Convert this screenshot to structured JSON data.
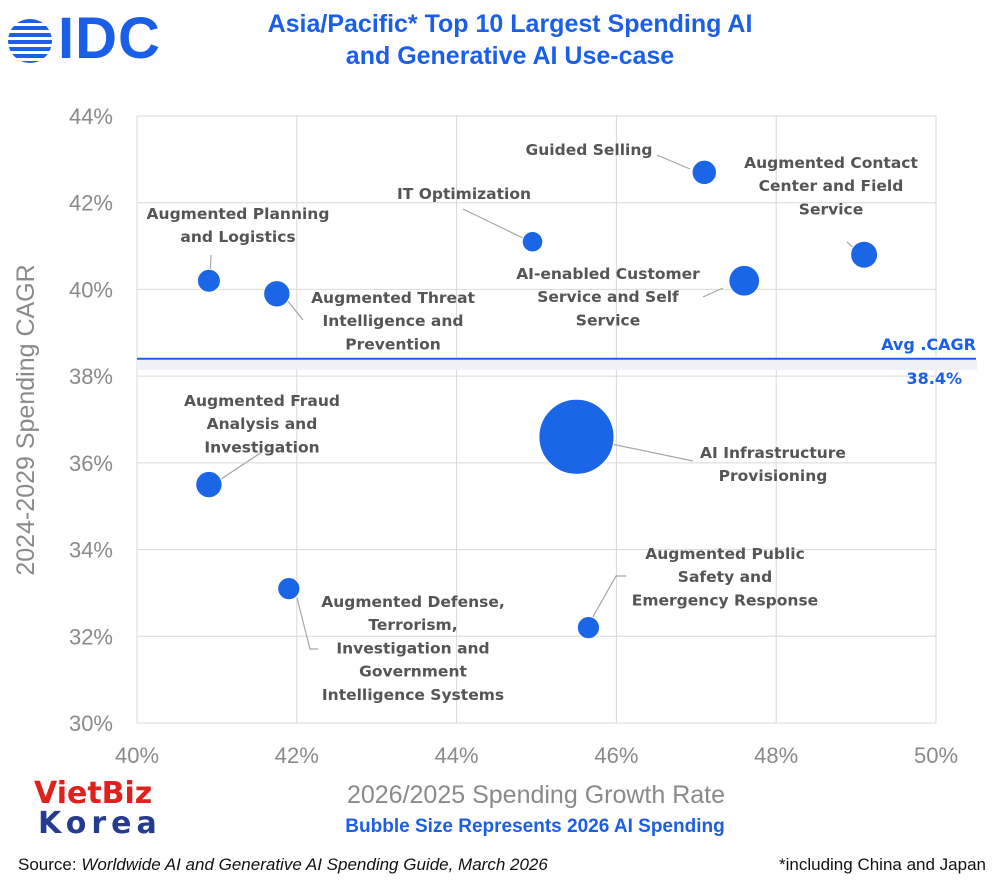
{
  "brand": {
    "logo_text": "IDC",
    "accent": "#1b5ee8"
  },
  "header": {
    "title_line1": "Asia/Pacific* Top 10 Largest Spending AI",
    "title_line2": "and Generative AI Use-case"
  },
  "chart_data": {
    "type": "scatter",
    "subtype": "bubble",
    "xlabel": "2026/2025 Spending Growth Rate",
    "ylabel": "2024-2029 Spending CAGR",
    "xlim": [
      40,
      50
    ],
    "ylim": [
      30,
      44
    ],
    "x_ticks": [
      "40%",
      "42%",
      "44%",
      "46%",
      "48%",
      "50%"
    ],
    "y_ticks": [
      "30%",
      "32%",
      "34%",
      "36%",
      "38%",
      "40%",
      "42%",
      "44%"
    ],
    "grid": true,
    "bubble_color": "#1a66e6",
    "avg_line": {
      "value": 38.4,
      "label": "Avg .CAGR",
      "value_label": "38.4%"
    },
    "points": [
      {
        "name": "Guided Selling",
        "label_lines": [
          "Guided Selling"
        ],
        "x": 47.1,
        "y": 42.7,
        "size": 1.2
      },
      {
        "name": "Augmented Contact Center and Field Service",
        "label_lines": [
          "Augmented Contact",
          "Center and Field",
          "Service"
        ],
        "x": 49.1,
        "y": 40.8,
        "size": 1.6
      },
      {
        "name": "IT Optimization",
        "label_lines": [
          "IT Optimization"
        ],
        "x": 44.95,
        "y": 41.1,
        "size": 0.7
      },
      {
        "name": "Augmented Planning and Logistics",
        "label_lines": [
          "Augmented Planning",
          "and Logistics"
        ],
        "x": 40.9,
        "y": 40.2,
        "size": 1.0
      },
      {
        "name": "Augmented Threat Intelligence and Prevention",
        "label_lines": [
          "Augmented Threat",
          "Intelligence and",
          "Prevention"
        ],
        "x": 41.75,
        "y": 39.9,
        "size": 1.5
      },
      {
        "name": "AI-enabled Customer Service and Self Service",
        "label_lines": [
          "AI-enabled Customer",
          "Service and Self",
          "Service"
        ],
        "x": 47.6,
        "y": 40.2,
        "size": 2.3
      },
      {
        "name": "Augmented Fraud Analysis and Investigation",
        "label_lines": [
          "Augmented Fraud",
          "Analysis and",
          "Investigation"
        ],
        "x": 40.9,
        "y": 35.5,
        "size": 1.5
      },
      {
        "name": "AI Infrastructure Provisioning",
        "label_lines": [
          "AI Infrastructure",
          "Provisioning"
        ],
        "x": 45.5,
        "y": 36.6,
        "size": 20.0
      },
      {
        "name": "Augmented Defense, Terrorism, Investigation and Government Intelligence Systems",
        "label_lines": [
          "Augmented Defense,",
          "Terrorism,",
          "Investigation and",
          "Government",
          "Intelligence Systems"
        ],
        "x": 41.9,
        "y": 33.1,
        "size": 0.9
      },
      {
        "name": "Augmented Public Safety and Emergency Response",
        "label_lines": [
          "Augmented Public",
          "Safety and",
          "Emergency Response"
        ],
        "x": 45.65,
        "y": 32.2,
        "size": 0.9
      }
    ]
  },
  "footer": {
    "bubble_note": "Bubble Size Represents 2026 AI Spending",
    "source_prefix": "Source: ",
    "source_title": "Worldwide AI and Generative AI Spending Guide, March 2026",
    "region_note": "*including China and Japan"
  },
  "watermark": {
    "line1": "VietBiz",
    "line2": "Korea"
  }
}
